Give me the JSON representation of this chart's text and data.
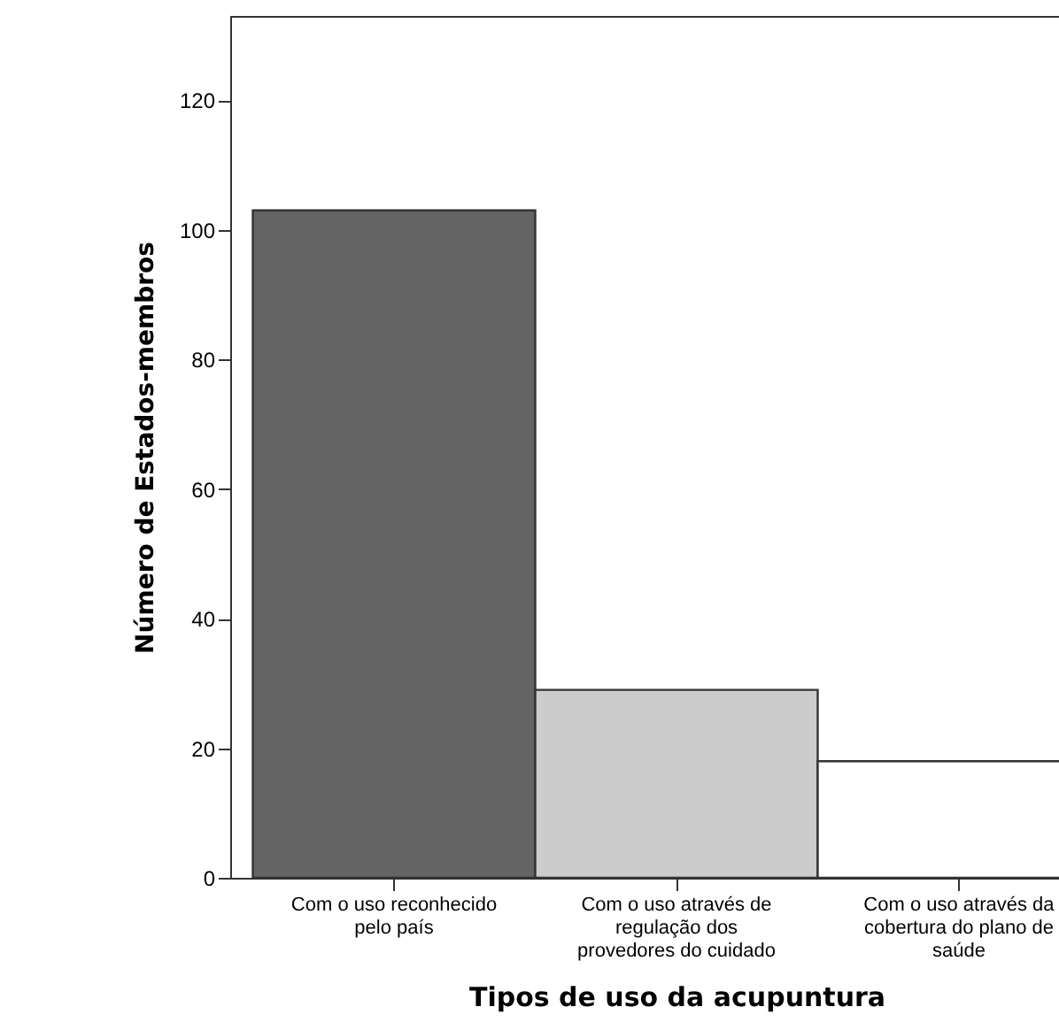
{
  "chart_data": {
    "type": "bar",
    "xlabel": "Tipos de uso da acupuntura",
    "ylabel": "Número de Estados-membros",
    "categories": [
      "Com o uso reconhecido pelo país",
      "Com o uso através de regulação dos provedores do cuidado",
      "Com o uso através da cobertura do plano de saúde"
    ],
    "values": [
      103,
      29,
      18
    ],
    "colors": [
      "#646464",
      "#cccccc",
      "#ffffff"
    ],
    "ylim": [
      0,
      133
    ],
    "yticks": [
      0,
      20,
      40,
      60,
      80,
      100,
      120
    ],
    "grid": false,
    "legend": false
  }
}
